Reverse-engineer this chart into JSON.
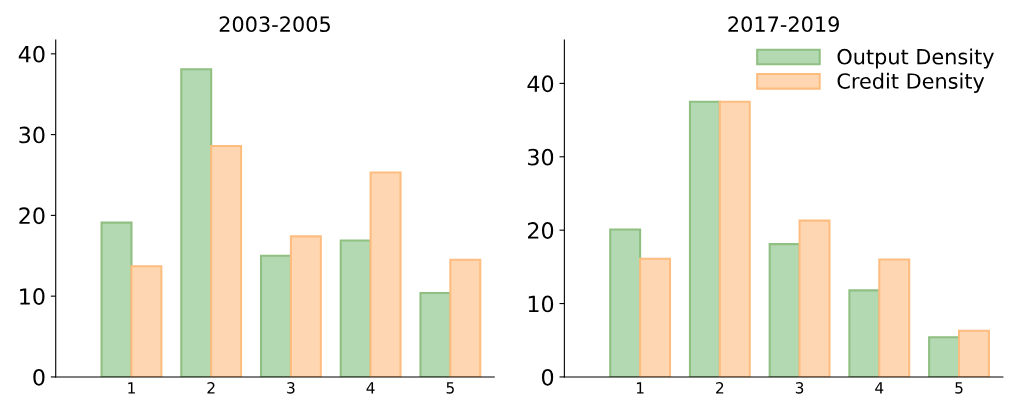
{
  "chart_data": [
    {
      "type": "bar",
      "title": "2003-2005",
      "categories": [
        "1",
        "2",
        "3",
        "4",
        "5"
      ],
      "series": [
        {
          "color": "#b3d9b3",
          "values": [
            19.1,
            38.1,
            15.0,
            16.9,
            10.4
          ]
        },
        {
          "color": "#fed7b2",
          "values": [
            13.7,
            28.6,
            17.4,
            25.3,
            14.5
          ]
        }
      ],
      "ylim": [
        0,
        41.7
      ],
      "yticks": [
        0,
        10,
        20,
        30,
        40
      ],
      "grid": false
    },
    {
      "type": "bar",
      "title": "2017-2019",
      "categories": [
        "1",
        "2",
        "3",
        "4",
        "5"
      ],
      "series": [
        {
          "name": "Output Density",
          "color": "#b3d9b3",
          "values": [
            20.1,
            37.5,
            18.1,
            11.8,
            5.4
          ]
        },
        {
          "name": "Credit Density",
          "color": "#fed7b2",
          "values": [
            16.1,
            37.5,
            21.3,
            16.0,
            6.3
          ]
        }
      ],
      "ylim": [
        0,
        45.9
      ],
      "yticks": [
        0,
        10,
        20,
        30,
        40
      ],
      "grid": false,
      "legend": "top right"
    }
  ]
}
